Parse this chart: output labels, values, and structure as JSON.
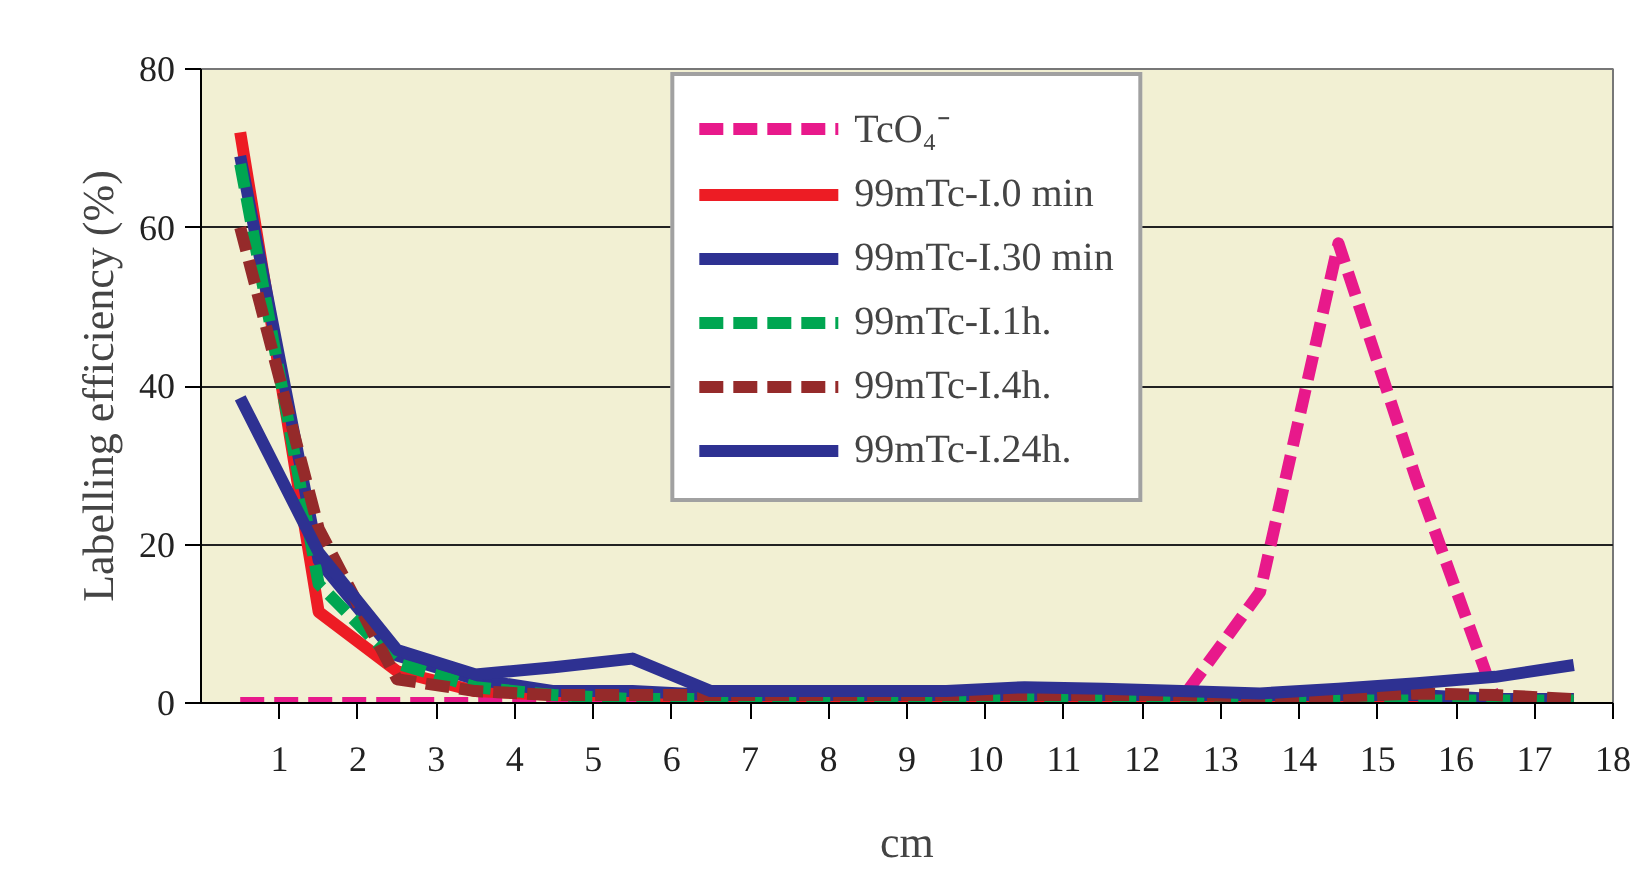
{
  "chart_data": {
    "type": "line",
    "xlabel": "cm",
    "ylabel": "Labelling efficiency (%)",
    "x": [
      0.5,
      1.5,
      2.5,
      3.5,
      4.5,
      5.5,
      6.5,
      7.5,
      8.5,
      9.5,
      10.5,
      11.5,
      12.5,
      13.5,
      14.5,
      15.5,
      16.5,
      17.5
    ],
    "series": [
      {
        "name": "TcO₄⁻",
        "color": "#e8198b",
        "line_style": "dashed",
        "values": [
          0,
          0,
          0,
          0,
          0,
          0,
          0,
          0,
          0,
          0,
          0,
          0,
          0.5,
          14,
          58,
          28,
          0.5,
          0
        ]
      },
      {
        "name": "99mTc-I.0 min",
        "color": "#ed1c24",
        "line_style": "solid",
        "values": [
          72,
          11.5,
          4,
          1.5,
          1,
          1,
          0.5,
          0.5,
          0.5,
          0.5,
          0.5,
          0.5,
          0.5,
          0.5,
          0.5,
          0.5,
          0.5,
          0.5
        ]
      },
      {
        "name": "99mTc-I.30 min",
        "color": "#2e3192",
        "line_style": "solid",
        "values": [
          69,
          18,
          6,
          3,
          1.5,
          1.5,
          1,
          1,
          1,
          1,
          1,
          1,
          1,
          1,
          1,
          1,
          0.5,
          0.5
        ]
      },
      {
        "name": "99mTc-I.1h.",
        "color": "#00a651",
        "line_style": "dashed",
        "values": [
          68,
          15,
          5,
          2,
          1,
          0.5,
          0.5,
          0.5,
          0.5,
          0.5,
          0.5,
          0.5,
          0.5,
          0.5,
          0.3,
          0.3,
          0.3,
          0.3
        ]
      },
      {
        "name": "99mTc-I.4h.",
        "color": "#952a2a",
        "line_style": "dashed",
        "values": [
          60,
          22,
          3,
          1.5,
          1,
          1,
          1,
          1,
          1,
          1,
          1,
          1,
          1,
          0.8,
          0.8,
          1.2,
          1,
          0.5
        ]
      },
      {
        "name": "99mTc-I.24h.",
        "color": "#2e3192",
        "line_style": "solid",
        "values": [
          38.5,
          19,
          6.7,
          3.6,
          4.5,
          5.6,
          1.5,
          1.5,
          1.5,
          1.5,
          2,
          1.8,
          1.5,
          1.2,
          1.8,
          2.5,
          3.3,
          4.8
        ]
      }
    ],
    "xlim": [
      0,
      18
    ],
    "xticks": [
      1,
      2,
      3,
      4,
      5,
      6,
      7,
      8,
      9,
      10,
      11,
      12,
      13,
      14,
      15,
      16,
      17,
      18
    ],
    "ylim": [
      0,
      80
    ],
    "yticks": [
      0,
      20,
      40,
      60,
      80
    ],
    "grid": "y",
    "legend": "top",
    "marker": "none"
  }
}
